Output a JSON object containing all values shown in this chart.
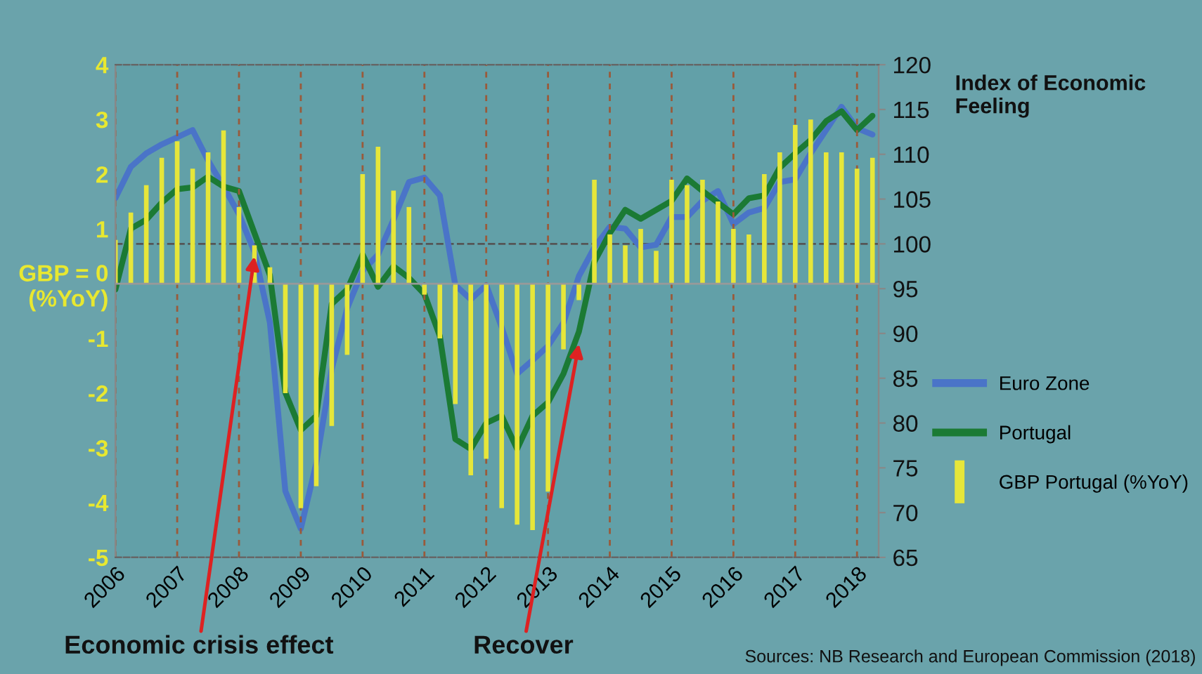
{
  "chart_data": {
    "type": "bar",
    "y2label": "Index of Economic Feeling",
    "x": [
      2006,
      2006.25,
      2006.5,
      2006.75,
      2007,
      2007.25,
      2007.5,
      2007.75,
      2008,
      2008.25,
      2008.5,
      2008.75,
      2009,
      2009.25,
      2009.5,
      2009.75,
      2010,
      2010.25,
      2010.5,
      2010.75,
      2011,
      2011.25,
      2011.5,
      2011.75,
      2012,
      2012.25,
      2012.5,
      2012.75,
      2013,
      2013.25,
      2013.5,
      2013.75,
      2014,
      2014.25,
      2014.5,
      2014.75,
      2015,
      2015.25,
      2015.5,
      2015.75,
      2016,
      2016.25,
      2016.5,
      2016.75,
      2017,
      2017.25,
      2017.5,
      2017.75,
      2018,
      2018.25
    ],
    "series": [
      {
        "name": "Euro Zone",
        "type": "line",
        "axis": "y2",
        "color": "#4a74c8",
        "values": [
          105.1,
          108.6,
          110.1,
          111.1,
          111.9,
          112.7,
          109.3,
          106.4,
          103.3,
          99.1,
          91.2,
          72.4,
          68.2,
          75.5,
          86.0,
          92.8,
          97.0,
          98.8,
          102.7,
          106.9,
          107.4,
          105.4,
          95.4,
          93.8,
          95.4,
          90.7,
          85.5,
          87.0,
          88.6,
          91.2,
          96.4,
          99.6,
          101.9,
          101.7,
          99.6,
          99.9,
          103.0,
          103.0,
          104.8,
          105.9,
          102.2,
          103.5,
          104.0,
          106.9,
          107.2,
          110.1,
          112.7,
          115.3,
          112.9,
          112.2
        ]
      },
      {
        "name": "Portugal",
        "type": "line",
        "axis": "y2",
        "color": "#1b7a34",
        "values": [
          94.9,
          101.7,
          102.7,
          104.6,
          106.1,
          106.3,
          107.5,
          106.4,
          105.9,
          101.2,
          96.5,
          83.4,
          79.2,
          80.8,
          93.3,
          94.9,
          98.8,
          95.2,
          97.5,
          96.2,
          94.4,
          89.7,
          78.2,
          77.1,
          80.0,
          80.8,
          77.1,
          80.8,
          82.3,
          85.5,
          90.2,
          98.0,
          101.2,
          103.8,
          102.8,
          103.8,
          104.8,
          107.3,
          105.9,
          104.6,
          103.3,
          105.1,
          105.4,
          108.5,
          110.1,
          111.6,
          113.7,
          114.8,
          112.7,
          114.3
        ]
      },
      {
        "name": "GBP Portugal (%YoY)",
        "axis": "y",
        "color": "#e6e63a",
        "values": [
          0.8,
          1.3,
          1.8,
          2.3,
          2.6,
          2.1,
          2.4,
          2.8,
          1.4,
          0.7,
          0.3,
          -2.0,
          -4.1,
          -3.7,
          -2.6,
          -1.3,
          2.0,
          2.5,
          1.7,
          1.4,
          -0.2,
          -1.0,
          -2.2,
          -3.5,
          -3.2,
          -4.1,
          -4.4,
          -4.5,
          -3.8,
          -1.2,
          -0.3,
          1.9,
          0.9,
          0.7,
          1.0,
          0.6,
          1.9,
          1.8,
          1.9,
          1.5,
          1.0,
          0.9,
          2.0,
          2.4,
          2.9,
          3.0,
          2.4,
          2.4,
          2.1,
          2.3
        ]
      }
    ],
    "xlim": [
      2006,
      2018.35
    ],
    "xticks": [
      2006,
      2007,
      2008,
      2009,
      2010,
      2011,
      2012,
      2013,
      2014,
      2015,
      2016,
      2017,
      2018
    ],
    "ylim": [
      -5,
      4
    ],
    "yticks": [
      4,
      3,
      2,
      1,
      {
        "value": 0,
        "label": "GBP = 0\n(%YoY)"
      },
      -1,
      -2,
      -3,
      -4,
      -5
    ],
    "y2lim": [
      65,
      120
    ],
    "y2ticks": [
      120,
      115,
      110,
      105,
      100,
      95,
      90,
      85,
      80,
      75,
      70,
      65
    ],
    "ref_lines": [
      {
        "axis": "y2",
        "value": 100,
        "color": "#555555",
        "line_style": "dashed"
      }
    ],
    "grid": "x",
    "legend": "right",
    "line_style": "solid",
    "marker": "none",
    "annotations": [
      {
        "text": "Economic crisis effect",
        "x": 2008.25,
        "y": 0.5
      },
      {
        "text": "Recover",
        "x": 2013.5,
        "y": -1.1
      },
      "Sources: NB Research and European Commission (2018)"
    ]
  }
}
